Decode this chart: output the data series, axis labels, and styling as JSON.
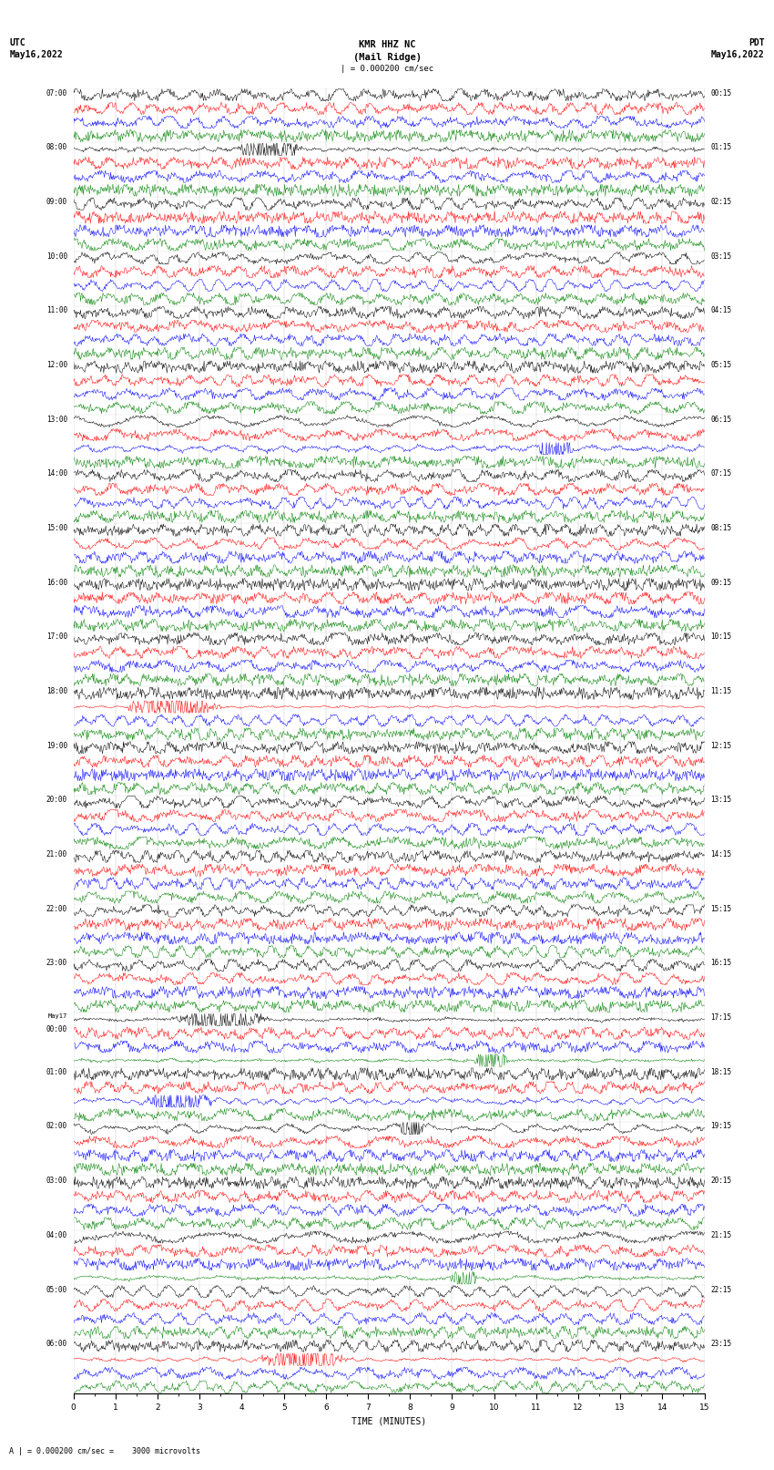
{
  "title_line1": "KMR HHZ NC",
  "title_line2": "(Mail Ridge)",
  "scale_label": "| = 0.000200 cm/sec",
  "left_header": "UTC",
  "left_date": "May16,2022",
  "right_header": "PDT",
  "right_date": "May16,2022",
  "xlabel": "TIME (MINUTES)",
  "footer": "A | = 0.000200 cm/sec =    3000 microvolts",
  "xmin": 0,
  "xmax": 15,
  "xticks": [
    0,
    1,
    2,
    3,
    4,
    5,
    6,
    7,
    8,
    9,
    10,
    11,
    12,
    13,
    14,
    15
  ],
  "colors": [
    "black",
    "red",
    "blue",
    "green"
  ],
  "background": "white",
  "left_times": [
    "07:00",
    "08:00",
    "09:00",
    "10:00",
    "11:00",
    "12:00",
    "13:00",
    "14:00",
    "15:00",
    "16:00",
    "17:00",
    "18:00",
    "19:00",
    "20:00",
    "21:00",
    "22:00",
    "23:00",
    "May17\n00:00",
    "01:00",
    "02:00",
    "03:00",
    "04:00",
    "05:00",
    "06:00"
  ],
  "right_times": [
    "00:15",
    "01:15",
    "02:15",
    "03:15",
    "04:15",
    "05:15",
    "06:15",
    "07:15",
    "08:15",
    "09:15",
    "10:15",
    "11:15",
    "12:15",
    "13:15",
    "14:15",
    "15:15",
    "16:15",
    "17:15",
    "18:15",
    "19:15",
    "20:15",
    "21:15",
    "22:15",
    "23:15"
  ],
  "n_hour_blocks": 24,
  "rows_per_block": 4,
  "noise_scale": 0.03,
  "amplitude_scale": 0.38
}
